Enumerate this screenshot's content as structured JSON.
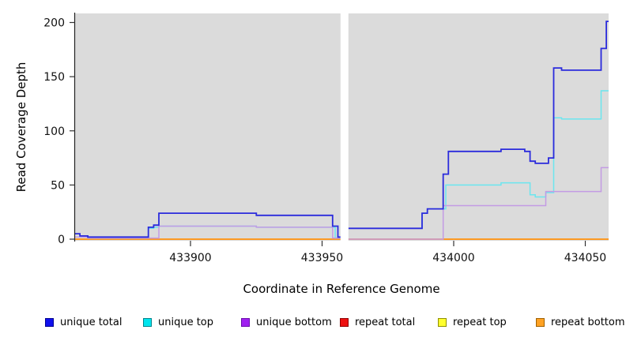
{
  "chart_data": {
    "type": "line",
    "title": "",
    "xlabel": "Coordinate in Reference Genome",
    "ylabel": "Read Coverage Depth",
    "xlim": [
      433856,
      434059
    ],
    "ylim": [
      0,
      200
    ],
    "x_ticks": [
      433900,
      433950,
      434000,
      434050
    ],
    "y_ticks": [
      0,
      50,
      100,
      150,
      200
    ],
    "grid": false,
    "plot_bg": "#DBDBDB",
    "outer_bg": "#FFFFFF",
    "gap_band": {
      "from": 433957,
      "to": 433960,
      "color": "#FFFFFF"
    },
    "legend_position": "bottom",
    "series": [
      {
        "name": "unique total",
        "color": "#2B2BDC",
        "width": 1.8,
        "segments": [
          [
            [
              433856,
              5
            ],
            [
              433858,
              3
            ],
            [
              433861,
              2
            ],
            [
              433884,
              11
            ],
            [
              433886,
              13
            ],
            [
              433888,
              24
            ],
            [
              433925,
              22
            ],
            [
              433954,
              12
            ],
            [
              433956,
              2
            ],
            [
              433957,
              2
            ]
          ],
          [
            [
              433960,
              10
            ],
            [
              433988,
              24
            ],
            [
              433990,
              28
            ],
            [
              433996,
              60
            ],
            [
              433998,
              81
            ],
            [
              434018,
              83
            ],
            [
              434027,
              81
            ],
            [
              434029,
              72
            ],
            [
              434031,
              70
            ],
            [
              434036,
              75
            ],
            [
              434038,
              158
            ],
            [
              434041,
              156
            ],
            [
              434056,
              176
            ],
            [
              434058,
              201
            ],
            [
              434059,
              201
            ]
          ]
        ]
      },
      {
        "name": "unique top",
        "color": "#6BE6EF",
        "width": 1.5,
        "segments": [
          [
            [
              433856,
              2
            ],
            [
              433861,
              1
            ],
            [
              433884,
              10
            ],
            [
              433886,
              11
            ],
            [
              433888,
              12
            ],
            [
              433925,
              11
            ],
            [
              433955,
              1
            ],
            [
              433957,
              1
            ]
          ],
          [
            [
              433960,
              10
            ],
            [
              433988,
              24
            ],
            [
              433990,
              28
            ],
            [
              433997,
              50
            ],
            [
              434018,
              52
            ],
            [
              434029,
              41
            ],
            [
              434031,
              39
            ],
            [
              434035,
              43
            ],
            [
              434038,
              112
            ],
            [
              434041,
              111
            ],
            [
              434056,
              137
            ],
            [
              434059,
              137
            ]
          ]
        ]
      },
      {
        "name": "unique bottom",
        "color": "#C39BE4",
        "width": 1.5,
        "segments": [
          [
            [
              433856,
              2
            ],
            [
              433861,
              1
            ],
            [
              433888,
              12
            ],
            [
              433925,
              11
            ],
            [
              433954,
              1
            ],
            [
              433957,
              1
            ]
          ],
          [
            [
              433960,
              0
            ],
            [
              433996,
              31
            ],
            [
              434035,
              44
            ],
            [
              434056,
              66
            ],
            [
              434059,
              66
            ]
          ]
        ]
      },
      {
        "name": "repeat total",
        "color": "#DD3333",
        "width": 1.3,
        "segments": [
          [
            [
              433856,
              0
            ],
            [
              433957,
              0
            ]
          ],
          [
            [
              433960,
              0
            ],
            [
              434059,
              0
            ]
          ]
        ]
      },
      {
        "name": "repeat top",
        "color": "#EEE83C",
        "width": 1.3,
        "segments": [
          [
            [
              433856,
              0
            ],
            [
              433957,
              0
            ]
          ],
          [
            [
              433960,
              0
            ],
            [
              434059,
              0
            ]
          ]
        ]
      },
      {
        "name": "repeat bottom",
        "color": "#FF9514",
        "width": 1.8,
        "segments": [
          [
            [
              433856,
              0
            ],
            [
              433957,
              0
            ]
          ],
          [
            [
              433960,
              0
            ],
            [
              434059,
              0
            ]
          ]
        ]
      }
    ],
    "draw_order": [
      3,
      4,
      5,
      1,
      2,
      0
    ],
    "legend": [
      {
        "label": "unique total",
        "fill": "#1010EE",
        "border": "#000090"
      },
      {
        "label": "unique top",
        "fill": "#00E5EE",
        "border": "#00838B"
      },
      {
        "label": "unique bottom",
        "fill": "#A020F0",
        "border": "#6A0DAD"
      },
      {
        "label": "repeat total",
        "fill": "#EE1010",
        "border": "#900000"
      },
      {
        "label": "repeat top",
        "fill": "#FFFF2E",
        "border": "#8F8F00"
      },
      {
        "label": "repeat bottom",
        "fill": "#FFA224",
        "border": "#A06000"
      }
    ]
  }
}
